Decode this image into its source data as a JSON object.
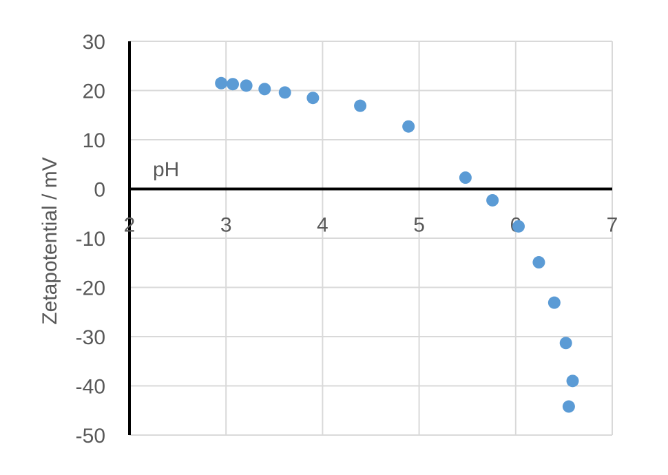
{
  "chart_data": {
    "type": "scatter",
    "title": "",
    "xlabel": "pH",
    "ylabel": "Zetapotential / mV",
    "xlim": [
      2,
      7
    ],
    "ylim": [
      -50,
      30
    ],
    "x_ticks": [
      "2",
      "3",
      "4",
      "5",
      "6",
      "7"
    ],
    "y_ticks": [
      "30",
      "20",
      "10",
      "0",
      "-10",
      "-20",
      "-30",
      "-40",
      "-50"
    ],
    "grid": true,
    "legend": "none",
    "series": [
      {
        "color": "#5b9bd5",
        "points": [
          {
            "x": 2.95,
            "y": 21.5
          },
          {
            "x": 3.07,
            "y": 21.3
          },
          {
            "x": 3.21,
            "y": 21.0
          },
          {
            "x": 3.4,
            "y": 20.3
          },
          {
            "x": 3.61,
            "y": 19.6
          },
          {
            "x": 3.9,
            "y": 18.5
          },
          {
            "x": 4.39,
            "y": 16.9
          },
          {
            "x": 4.89,
            "y": 12.7
          },
          {
            "x": 5.48,
            "y": 2.3
          },
          {
            "x": 5.76,
            "y": -2.3
          },
          {
            "x": 6.03,
            "y": -7.6
          },
          {
            "x": 6.24,
            "y": -14.9
          },
          {
            "x": 6.4,
            "y": -23.1
          },
          {
            "x": 6.52,
            "y": -31.3
          },
          {
            "x": 6.59,
            "y": -39.0
          },
          {
            "x": 6.55,
            "y": -44.2
          }
        ]
      }
    ]
  }
}
